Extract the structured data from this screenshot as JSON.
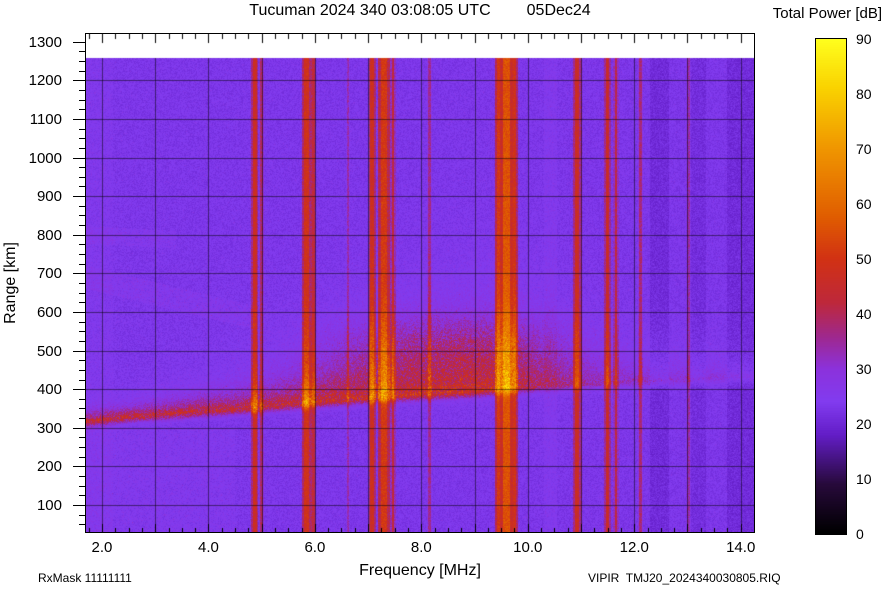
{
  "title": {
    "left": "Tucuman 2024 340 03:08:05 UTC",
    "right": "05Dec24"
  },
  "colorbar": {
    "title": "Total Power [dB]",
    "min": 0,
    "max": 90,
    "ticks": [
      0,
      10,
      20,
      30,
      40,
      50,
      60,
      70,
      80,
      90
    ]
  },
  "axes": {
    "x": {
      "label": "Frequency [MHz]",
      "ticks": [
        {
          "v": 2,
          "label": "2.0"
        },
        {
          "v": 4,
          "label": "4.0"
        },
        {
          "v": 6,
          "label": "6.0"
        },
        {
          "v": 8,
          "label": "8.0"
        },
        {
          "v": 10,
          "label": "10.0"
        },
        {
          "v": 12,
          "label": "12.0"
        },
        {
          "v": 14,
          "label": "14.0"
        }
      ]
    },
    "y": {
      "label": "Range [km]",
      "ticks": [
        {
          "v": 100,
          "label": "100"
        },
        {
          "v": 200,
          "label": "200"
        },
        {
          "v": 300,
          "label": "300"
        },
        {
          "v": 400,
          "label": "400"
        },
        {
          "v": 500,
          "label": "500"
        },
        {
          "v": 600,
          "label": "600"
        },
        {
          "v": 700,
          "label": "700"
        },
        {
          "v": 800,
          "label": "800"
        },
        {
          "v": 900,
          "label": "900"
        },
        {
          "v": 1000,
          "label": "1000"
        },
        {
          "v": 1100,
          "label": "1100"
        },
        {
          "v": 1200,
          "label": "1200"
        },
        {
          "v": 1300,
          "label": "1300"
        }
      ]
    }
  },
  "footer": {
    "left": "RxMask 11111111",
    "right": "VIPIR  TMJ20_2024340030805.RIQ"
  },
  "chart_data": {
    "type": "heatmap",
    "title": "Tucuman 2024 340 03:08:05 UTC 05Dec24",
    "xlabel": "Frequency [MHz]",
    "ylabel": "Range [km]",
    "zlabel": "Total Power [dB]",
    "xlim": [
      1.7,
      14.25
    ],
    "ylim": [
      30,
      1320
    ],
    "zlim": [
      0,
      90
    ],
    "data_top_km": 1258,
    "x_grid_step_mhz": 1.0,
    "y_grid_step_km": 100,
    "grid_color": "#000000",
    "grid_alpha": 0.5,
    "palette": [
      [
        0,
        "#000000"
      ],
      [
        9,
        "#280A3C"
      ],
      [
        18,
        "#641EC8"
      ],
      [
        24,
        "#823CF0"
      ],
      [
        30,
        "#8C32DC"
      ],
      [
        36,
        "#A0288C"
      ],
      [
        42,
        "#BE283C"
      ],
      [
        50,
        "#D23214"
      ],
      [
        58,
        "#E15F00"
      ],
      [
        70,
        "#F09600"
      ],
      [
        81,
        "#FAD200"
      ],
      [
        90,
        "#FFFF1E"
      ]
    ],
    "noise": {
      "base_db": 23,
      "jitter_db": 2.2,
      "speckle_db": 4,
      "speckle_prob": 0.06
    },
    "background_bands": [
      {
        "f1": 1.7,
        "f2": 2.2,
        "delta_db": 1
      },
      {
        "f1": 10.3,
        "f2": 10.55,
        "delta_db": 1.5
      },
      {
        "f1": 12.3,
        "f2": 12.65,
        "delta_db": -2.5
      },
      {
        "f1": 13.0,
        "f2": 13.35,
        "delta_db": -2
      },
      {
        "f1": 13.75,
        "f2": 14.25,
        "delta_db": -2.5
      }
    ],
    "rfi_stripes": [
      {
        "f": 4.87,
        "width": 0.07,
        "db": 46
      },
      {
        "f": 5.0,
        "width": 0.05,
        "db": 38
      },
      {
        "f": 5.85,
        "width": 0.09,
        "db": 48
      },
      {
        "f": 5.97,
        "width": 0.05,
        "db": 42
      },
      {
        "f": 6.62,
        "width": 0.04,
        "db": 33
      },
      {
        "f": 7.08,
        "width": 0.07,
        "db": 47
      },
      {
        "f": 7.3,
        "width": 0.11,
        "db": 50
      },
      {
        "f": 7.47,
        "width": 0.05,
        "db": 42
      },
      {
        "f": 8.15,
        "width": 0.05,
        "db": 35
      },
      {
        "f": 9.45,
        "width": 0.07,
        "db": 50
      },
      {
        "f": 9.6,
        "width": 0.12,
        "db": 55
      },
      {
        "f": 9.75,
        "width": 0.06,
        "db": 48
      },
      {
        "f": 10.93,
        "width": 0.08,
        "db": 46
      },
      {
        "f": 11.5,
        "width": 0.07,
        "db": 45
      },
      {
        "f": 11.66,
        "width": 0.05,
        "db": 41
      },
      {
        "f": 12.12,
        "width": 0.05,
        "db": 37
      },
      {
        "f": 13.02,
        "width": 0.05,
        "db": 33
      }
    ],
    "echo_trace": {
      "points": [
        [
          1.7,
          318
        ],
        [
          2.5,
          330
        ],
        [
          3.5,
          340
        ],
        [
          4.5,
          350
        ],
        [
          5.5,
          362
        ],
        [
          6.5,
          374
        ],
        [
          7.5,
          384
        ],
        [
          8.5,
          392
        ],
        [
          9.5,
          402
        ],
        [
          10.5,
          412
        ],
        [
          11.5,
          418
        ],
        [
          12.5,
          424
        ],
        [
          13.5,
          430
        ],
        [
          14.25,
          434
        ]
      ],
      "amp_db": [
        [
          1.7,
          24
        ],
        [
          3,
          25
        ],
        [
          5,
          25
        ],
        [
          6,
          26
        ],
        [
          8,
          27
        ],
        [
          9.5,
          26
        ],
        [
          10.2,
          18
        ],
        [
          11,
          13
        ],
        [
          12,
          10
        ],
        [
          13,
          8
        ],
        [
          14.25,
          7
        ]
      ],
      "tail_km": [
        [
          1.7,
          18
        ],
        [
          3,
          25
        ],
        [
          5,
          45
        ],
        [
          7,
          90
        ],
        [
          9,
          115
        ],
        [
          10,
          110
        ],
        [
          11,
          70
        ],
        [
          12,
          55
        ],
        [
          14.25,
          35
        ]
      ],
      "edge_sigma_km": 11
    },
    "spread_echo": {
      "f_center": 8.5,
      "f_sigma": 2.2,
      "r_center": 500,
      "r_sigma": 95,
      "amp_db": 13
    },
    "faint_features": [
      {
        "name": "upper-left-diagonal",
        "f1": 1.7,
        "f2": 4.9,
        "r_start": 690,
        "slope_km_per_mhz": -33,
        "width_km": 60,
        "amp_db": 4
      },
      {
        "name": "left-band-800km",
        "f1": 1.7,
        "f2": 3.4,
        "r_start": 800,
        "slope_km_per_mhz": -8,
        "width_km": 45,
        "amp_db": 3.5
      }
    ]
  }
}
